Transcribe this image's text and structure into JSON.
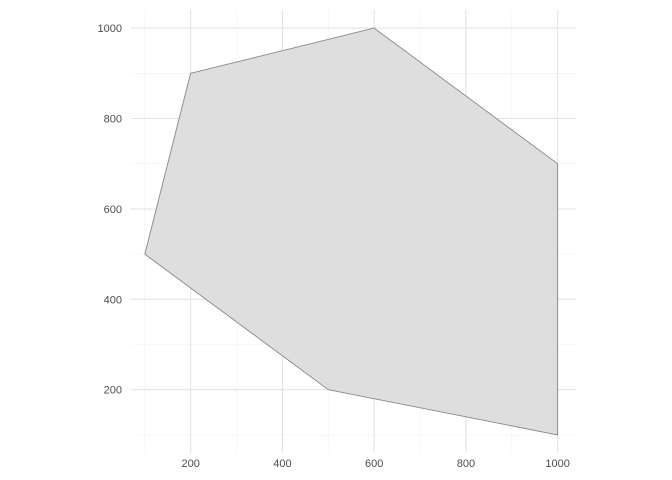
{
  "chart_data": {
    "type": "area",
    "title": "",
    "xlabel": "",
    "ylabel": "",
    "xlim": [
      70,
      1040
    ],
    "ylim": [
      60,
      1040
    ],
    "x_ticks": [
      200,
      400,
      600,
      800,
      1000
    ],
    "y_ticks": [
      200,
      400,
      600,
      800,
      1000
    ],
    "x_tick_labels": [
      "200",
      "400",
      "600",
      "800",
      "1000"
    ],
    "y_tick_labels": [
      "200",
      "400",
      "600",
      "800",
      "1000"
    ],
    "grid": true,
    "legend": "none",
    "series": [
      {
        "type": "polygon",
        "points": [
          {
            "x": 200,
            "y": 900
          },
          {
            "x": 600,
            "y": 1000
          },
          {
            "x": 1000,
            "y": 700
          },
          {
            "x": 1000,
            "y": 100
          },
          {
            "x": 500,
            "y": 200
          },
          {
            "x": 100,
            "y": 500
          }
        ]
      }
    ],
    "colors": {
      "fill": "#dedede",
      "stroke": "#888888",
      "grid_major": "#e3e3e3",
      "grid_minor": "#f1f1f1",
      "background": "#ffffff"
    }
  }
}
